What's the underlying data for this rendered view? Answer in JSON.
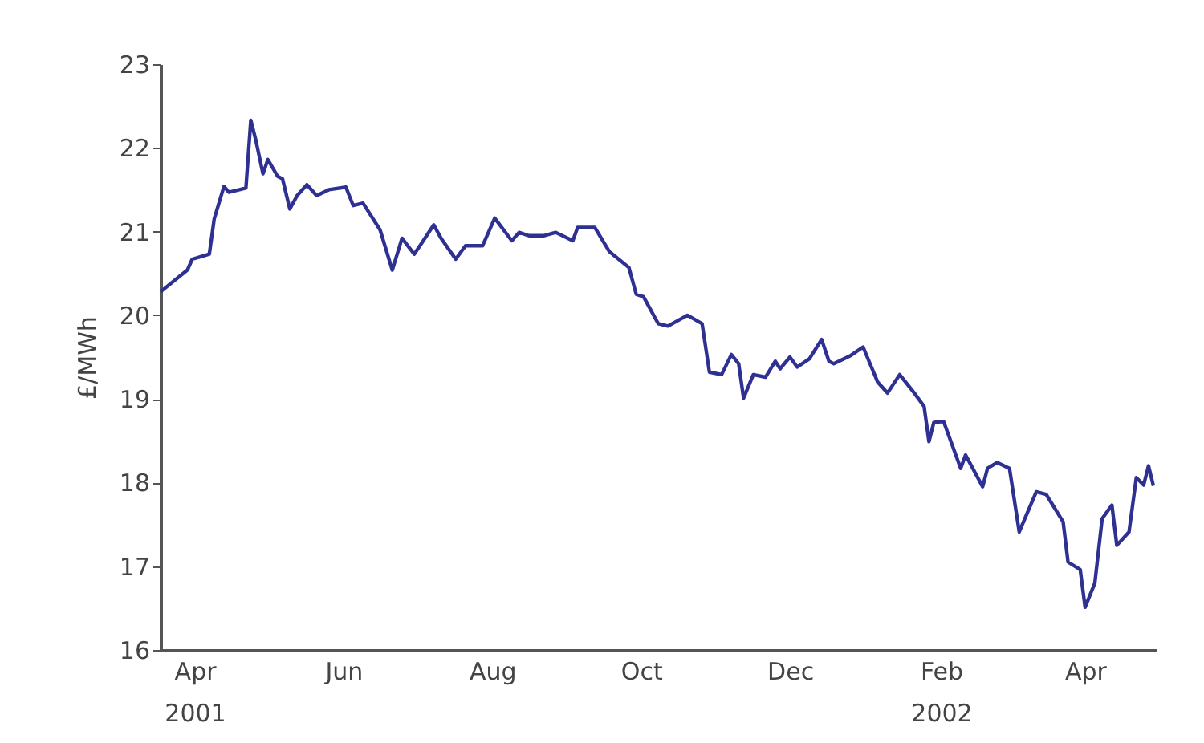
{
  "chart_data": {
    "type": "line",
    "ylabel": "£/MWh",
    "x": [
      "2001-04-01",
      "2001-04-12",
      "2001-04-14",
      "2001-04-21",
      "2001-04-23",
      "2001-04-27",
      "2001-04-29",
      "2001-05-06",
      "2001-05-08",
      "2001-05-10",
      "2001-05-13",
      "2001-05-15",
      "2001-05-19",
      "2001-05-21",
      "2001-05-24",
      "2001-05-27",
      "2001-05-31",
      "2001-06-04",
      "2001-06-09",
      "2001-06-16",
      "2001-06-19",
      "2001-06-23",
      "2001-06-30",
      "2001-07-05",
      "2001-07-09",
      "2001-07-14",
      "2001-07-17",
      "2001-07-22",
      "2001-07-25",
      "2001-07-31",
      "2001-08-04",
      "2001-08-11",
      "2001-08-16",
      "2001-08-23",
      "2001-08-26",
      "2001-08-30",
      "2001-09-05",
      "2001-09-10",
      "2001-09-17",
      "2001-09-19",
      "2001-09-26",
      "2001-10-02",
      "2001-10-10",
      "2001-10-13",
      "2001-10-16",
      "2001-10-22",
      "2001-10-26",
      "2001-11-03",
      "2001-11-09",
      "2001-11-12",
      "2001-11-17",
      "2001-11-21",
      "2001-11-24",
      "2001-11-26",
      "2001-11-30",
      "2001-12-05",
      "2001-12-09",
      "2001-12-11",
      "2001-12-15",
      "2001-12-18",
      "2001-12-23",
      "2001-12-28",
      "2001-12-31",
      "2002-01-02",
      "2002-01-09",
      "2002-01-14",
      "2002-01-20",
      "2002-01-24",
      "2002-01-29",
      "2002-02-04",
      "2002-02-08",
      "2002-02-10",
      "2002-02-12",
      "2002-02-16",
      "2002-02-23",
      "2002-02-25",
      "2002-03-04",
      "2002-03-06",
      "2002-03-10",
      "2002-03-15",
      "2002-03-19",
      "2002-03-26",
      "2002-03-30",
      "2002-04-06",
      "2002-04-08",
      "2002-04-13",
      "2002-04-15",
      "2002-04-19",
      "2002-04-22",
      "2002-04-26",
      "2002-04-28",
      "2002-05-03",
      "2002-05-06",
      "2002-05-09",
      "2002-05-11",
      "2002-05-13"
    ],
    "series": [
      {
        "color": "#2e3192",
        "values": [
          20.28,
          20.54,
          20.67,
          20.73,
          21.15,
          21.54,
          21.47,
          21.52,
          22.33,
          22.1,
          21.69,
          21.86,
          21.66,
          21.63,
          21.27,
          21.43,
          21.56,
          21.43,
          21.5,
          21.53,
          21.31,
          21.34,
          21.02,
          20.54,
          20.92,
          20.73,
          20.86,
          21.08,
          20.92,
          20.67,
          20.83,
          20.83,
          21.16,
          20.89,
          20.99,
          20.95,
          20.95,
          20.99,
          20.89,
          21.05,
          21.05,
          20.76,
          20.57,
          20.25,
          20.22,
          19.9,
          19.87,
          20.0,
          19.9,
          19.32,
          19.29,
          19.53,
          19.42,
          19.01,
          19.29,
          19.26,
          19.45,
          19.36,
          19.5,
          19.38,
          19.48,
          19.71,
          19.45,
          19.42,
          19.52,
          19.62,
          19.2,
          19.07,
          19.29,
          19.07,
          18.91,
          18.49,
          18.72,
          18.73,
          18.17,
          18.33,
          17.95,
          18.17,
          18.24,
          18.17,
          17.41,
          17.89,
          17.86,
          17.53,
          17.05,
          16.96,
          16.51,
          16.8,
          17.57,
          17.73,
          17.25,
          17.41,
          18.06,
          17.97,
          18.2,
          17.96
        ]
      }
    ],
    "xlim": [
      "2001-04-01",
      "2002-05-14"
    ],
    "xticks": [
      {
        "value": "2001-04-15",
        "label": "Apr 2001"
      },
      {
        "value": "2001-06-15",
        "label": "Jun"
      },
      {
        "value": "2001-08-15",
        "label": "Aug"
      },
      {
        "value": "2001-10-15",
        "label": "Oct"
      },
      {
        "value": "2001-12-15",
        "label": "Dec"
      },
      {
        "value": "2002-02-15",
        "label": "Feb 2002"
      },
      {
        "value": "2002-04-15",
        "label": "Apr"
      }
    ],
    "ylim": [
      16,
      23
    ],
    "yticks": [
      16,
      17,
      18,
      19,
      20,
      21,
      22,
      23
    ],
    "grid": false,
    "legend": false,
    "marker": "none",
    "line_style": "solid"
  }
}
